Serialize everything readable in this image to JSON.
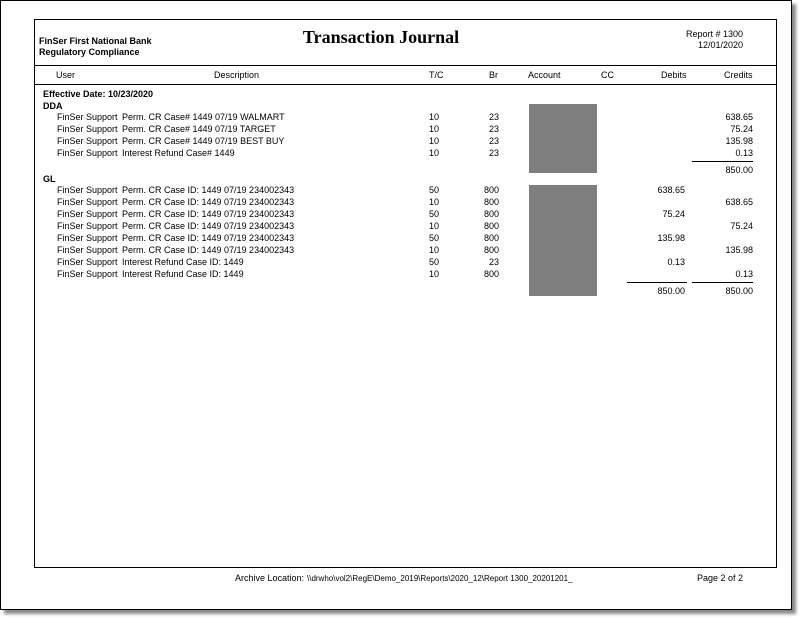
{
  "bank": {
    "name": "FinSer First National Bank",
    "dept": "Regulatory Compliance"
  },
  "title": "Transaction Journal",
  "report": {
    "number": "Report # 1300",
    "date": "12/01/2020"
  },
  "columns": {
    "user": "User",
    "description": "Description",
    "tc": "T/C",
    "br": "Br",
    "account": "Account",
    "cc": "CC",
    "debits": "Debits",
    "credits": "Credits"
  },
  "effective_date": "Effective Date: 10/23/2020",
  "dda": {
    "label": "DDA",
    "rows": [
      {
        "user": "FinSer Support",
        "desc": "Perm. CR Case# 1449 07/19 WALMART",
        "tc": "10",
        "br": "23",
        "debit": "",
        "credit": "638.65"
      },
      {
        "user": "FinSer Support",
        "desc": "Perm. CR Case# 1449 07/19 TARGET",
        "tc": "10",
        "br": "23",
        "debit": "",
        "credit": "75.24"
      },
      {
        "user": "FinSer Support",
        "desc": "Perm. CR Case# 1449 07/19 BEST BUY",
        "tc": "10",
        "br": "23",
        "debit": "",
        "credit": "135.98"
      },
      {
        "user": "FinSer Support",
        "desc": "Interest Refund Case# 1449",
        "tc": "10",
        "br": "23",
        "debit": "",
        "credit": "0.13"
      }
    ],
    "total_credit": "850.00"
  },
  "gl": {
    "label": "GL",
    "rows": [
      {
        "user": "FinSer Support",
        "desc": "Perm. CR Case ID: 1449 07/19 234002343",
        "tc": "50",
        "br": "800",
        "debit": "638.65",
        "credit": ""
      },
      {
        "user": "FinSer Support",
        "desc": "Perm. CR Case ID: 1449 07/19 234002343",
        "tc": "10",
        "br": "800",
        "debit": "",
        "credit": "638.65"
      },
      {
        "user": "FinSer Support",
        "desc": "Perm. CR Case ID: 1449 07/19 234002343",
        "tc": "50",
        "br": "800",
        "debit": "75.24",
        "credit": ""
      },
      {
        "user": "FinSer Support",
        "desc": "Perm. CR Case ID: 1449 07/19 234002343",
        "tc": "10",
        "br": "800",
        "debit": "",
        "credit": "75.24"
      },
      {
        "user": "FinSer Support",
        "desc": "Perm. CR Case ID: 1449 07/19 234002343",
        "tc": "50",
        "br": "800",
        "debit": "135.98",
        "credit": ""
      },
      {
        "user": "FinSer Support",
        "desc": "Perm. CR Case ID: 1449 07/19 234002343",
        "tc": "10",
        "br": "800",
        "debit": "",
        "credit": "135.98"
      },
      {
        "user": "FinSer Support",
        "desc": "Interest Refund Case ID: 1449",
        "tc": "50",
        "br": "23",
        "debit": "0.13",
        "credit": ""
      },
      {
        "user": "FinSer Support",
        "desc": "Interest Refund Case ID: 1449",
        "tc": "10",
        "br": "800",
        "debit": "",
        "credit": "0.13"
      }
    ],
    "total_debit": "850.00",
    "total_credit": "850.00"
  },
  "footer": {
    "archive_label": "Archive Location:",
    "archive_path": "\\\\drwho\\vol2\\RegE\\Demo_2019\\Reports\\2020_12\\Report 1300_20201201_",
    "page": "Page 2 of 2"
  },
  "redaction_color": "#7f7f7f"
}
